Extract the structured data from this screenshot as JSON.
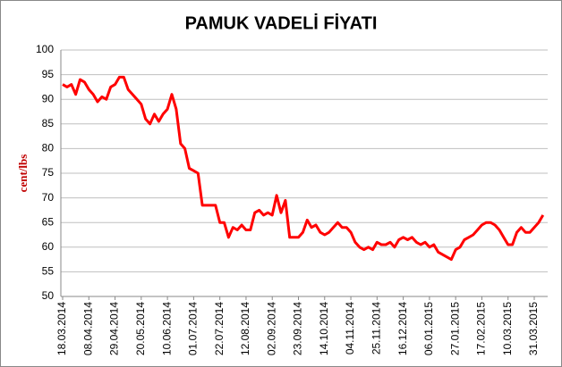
{
  "chart_data": {
    "type": "line",
    "title": "PAMUK VADELİ FİYATI",
    "y_label": "cent/lbs",
    "categories": [
      "18.03.2014",
      null,
      null,
      null,
      null,
      null,
      "08.04.2014",
      null,
      null,
      null,
      null,
      null,
      "29.04.2014",
      null,
      null,
      null,
      null,
      null,
      "20.05.2014",
      null,
      null,
      null,
      null,
      null,
      "10.06.2014",
      null,
      null,
      null,
      null,
      null,
      "01.07.2014",
      null,
      null,
      null,
      null,
      null,
      "22.07.2014",
      null,
      null,
      null,
      null,
      null,
      "12.08.2014",
      null,
      null,
      null,
      null,
      null,
      "02.09.2014",
      null,
      null,
      null,
      null,
      null,
      "23.09.2014",
      null,
      null,
      null,
      null,
      null,
      "14.10.2014",
      null,
      null,
      null,
      null,
      null,
      "04.11.2014",
      null,
      null,
      null,
      null,
      null,
      "25.11.2014",
      null,
      null,
      null,
      null,
      null,
      "16.12.2014",
      null,
      null,
      null,
      null,
      null,
      "06.01.2015",
      null,
      null,
      null,
      null,
      null,
      "27.01.2015",
      null,
      null,
      null,
      null,
      null,
      "17.02.2015",
      null,
      null,
      null,
      null,
      null,
      "10.03.2015",
      null,
      null,
      null,
      null,
      null,
      "31.03.2015",
      null,
      null
    ],
    "series": [
      {
        "name": "cent/lbs",
        "color": "#ff0000",
        "values": [
          93,
          92.5,
          93,
          91,
          94,
          93.5,
          92,
          91,
          89.5,
          90.5,
          90,
          92.5,
          93,
          94.5,
          94.5,
          92,
          91,
          90,
          89,
          86,
          85,
          87,
          85.5,
          87,
          88,
          91,
          88,
          81,
          80,
          76,
          75.5,
          75,
          68.5,
          68.5,
          68.5,
          68.5,
          65,
          65,
          62,
          64,
          63.5,
          64.5,
          63.5,
          63.5,
          67,
          67.5,
          66.5,
          67,
          66.5,
          70.5,
          67,
          69.5,
          62,
          62,
          62,
          63,
          65.5,
          64,
          64.5,
          63,
          62.5,
          63,
          64,
          65,
          64,
          64,
          63,
          61,
          60,
          59.5,
          60,
          59.5,
          61,
          60.5,
          60.5,
          61,
          60,
          61.5,
          62,
          61.5,
          62,
          61,
          60.5,
          61,
          60,
          60.5,
          59,
          58.5,
          58,
          57.5,
          59.5,
          60,
          61.5,
          62,
          62.5,
          63.5,
          64.5,
          65,
          65,
          64.5,
          63.5,
          62,
          60.5,
          60.5,
          63,
          64,
          63,
          63,
          64,
          65,
          66.5
        ]
      }
    ],
    "ylim": [
      50,
      100
    ],
    "yticks": [
      50,
      55,
      60,
      65,
      70,
      75,
      80,
      85,
      90,
      95,
      100
    ],
    "grid": true
  }
}
